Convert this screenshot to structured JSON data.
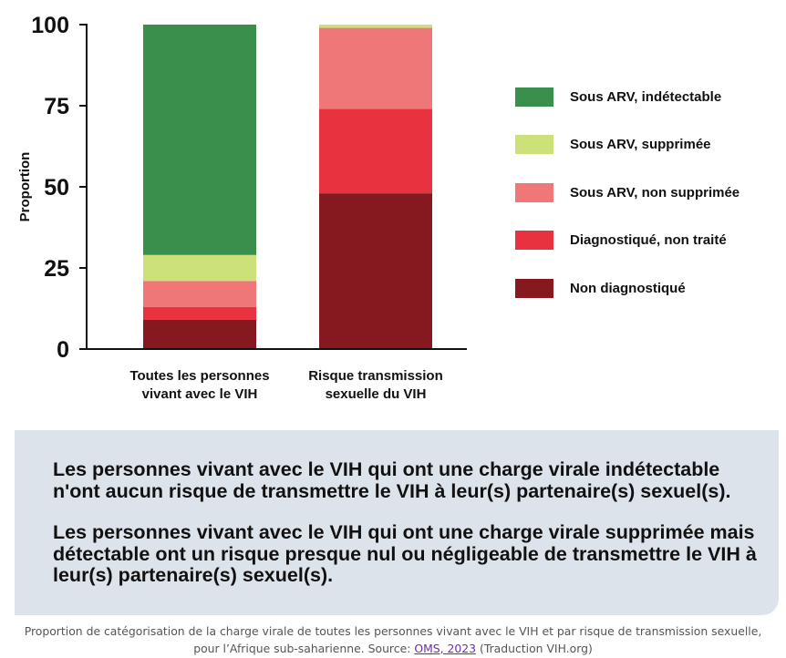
{
  "chart_data": {
    "type": "bar",
    "stacked": true,
    "title": "",
    "xlabel": "",
    "ylabel": "Proportion",
    "ylim": [
      0,
      100
    ],
    "yticks": [
      "0",
      "25",
      "50",
      "75",
      "100"
    ],
    "categories": [
      "Toutes les personnes vivant avec le VIH",
      "Risque transmission sexuelle du VIH"
    ],
    "category_lines": [
      [
        "Toutes les personnes",
        "vivant avec le VIH"
      ],
      [
        "Risque transmission",
        "sexuelle du VIH"
      ]
    ],
    "series": [
      {
        "name": "Non diagnostiqué",
        "color": "#861820",
        "values": [
          9,
          48
        ]
      },
      {
        "name": "Diagnostiqué, non traité",
        "color": "#e8323f",
        "values": [
          4,
          26
        ]
      },
      {
        "name": "Sous ARV, non supprimée",
        "color": "#ef7777",
        "values": [
          8,
          25
        ]
      },
      {
        "name": "Sous ARV, supprimée",
        "color": "#cde17b",
        "values": [
          8,
          1
        ]
      },
      {
        "name": "Sous ARV, indétectable",
        "color": "#3a8f4d",
        "values": [
          71,
          0
        ]
      }
    ],
    "legend_order": [
      "Sous ARV, indétectable",
      "Sous ARV, supprimée",
      "Sous ARV, non supprimée",
      "Diagnostiqué, non traité",
      "Non diagnostiqué"
    ],
    "legend_placement": "right",
    "grid": false
  },
  "info": {
    "paragraph1": "Les personnes vivant avec le VIH qui ont une charge virale indétectable n'ont aucun risque de transmettre le VIH à leur(s) partenaire(s) sexuel(s).",
    "paragraph2": "Les personnes vivant avec le VIH qui ont une charge virale supprimée mais détectable ont un risque presque nul ou négligeable de transmettre le VIH à leur(s) partenaire(s) sexuel(s)."
  },
  "caption": {
    "line1": "Proportion de catégorisation de la charge virale de toutes les personnes vivant avec le VIH et par risque de transmission sexuelle,",
    "line2_prefix": "pour l’Afrique sub-saharienne. Source: ",
    "link_text": "OMS, 2023",
    "line2_suffix": " (Traduction VIH.org)"
  }
}
